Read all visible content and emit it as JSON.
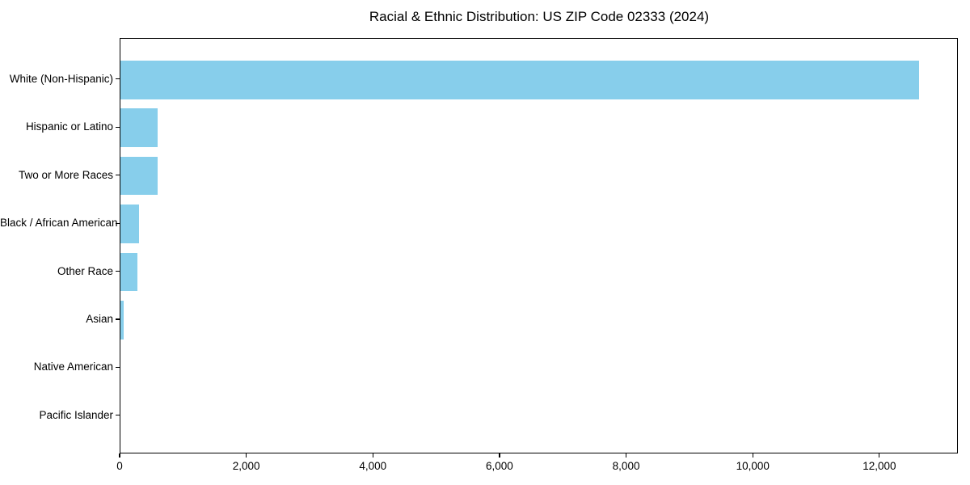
{
  "chart_data": {
    "type": "bar",
    "orientation": "horizontal",
    "title": "Racial & Ethnic Distribution: US ZIP Code 02333 (2024)",
    "xlabel": "",
    "ylabel": "",
    "categories": [
      "White (Non-Hispanic)",
      "Hispanic or Latino",
      "Two or More Races",
      "Black / African American",
      "Other Race",
      "Asian",
      "Native American",
      "Pacific Islander"
    ],
    "values": [
      12620,
      590,
      585,
      295,
      270,
      50,
      0,
      0
    ],
    "xlim": [
      0,
      13240
    ],
    "x_ticks": [
      0,
      2000,
      4000,
      6000,
      8000,
      10000,
      12000
    ],
    "x_tick_labels": [
      "0",
      "2,000",
      "4,000",
      "6,000",
      "8,000",
      "10,000",
      "12,000"
    ],
    "bar_color": "#87CEEB",
    "grid": false,
    "legend": false,
    "categories_order": "first-at-top"
  }
}
